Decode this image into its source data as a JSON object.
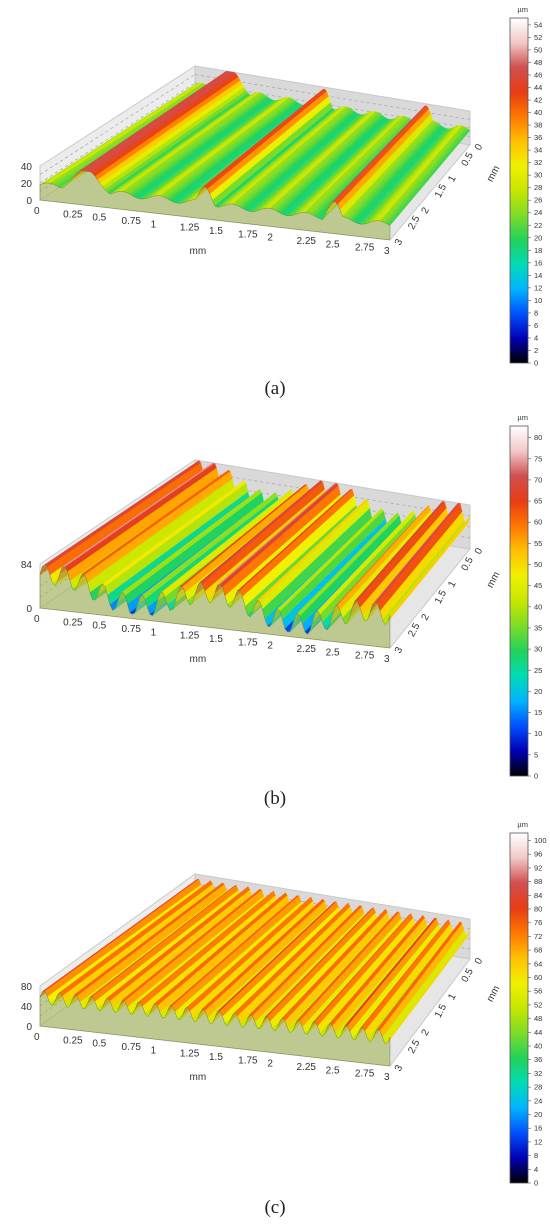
{
  "colors": {
    "scale": [
      "#000000",
      "#0000b4",
      "#0050ff",
      "#00b4ff",
      "#00dcb4",
      "#22d25a",
      "#7edc28",
      "#c8e600",
      "#f0f000",
      "#ffc000",
      "#ff7800",
      "#e83c14",
      "#d05050",
      "#f2c8c8",
      "#ffffff"
    ],
    "frame": "#c9c9c9",
    "tick_text": "#333333"
  },
  "panels": [
    {
      "caption": "(a)",
      "unit": "µm",
      "colorbar_ticks": [
        "54",
        "52",
        "50",
        "48",
        "46",
        "44",
        "42",
        "40",
        "38",
        "36",
        "34",
        "32",
        "30",
        "28",
        "26",
        "24",
        "22",
        "20",
        "18",
        "16",
        "14",
        "12",
        "10",
        "8",
        "6",
        "4",
        "2",
        "0"
      ],
      "z_ticks": [
        "40",
        "20",
        "0"
      ],
      "x_ticks": [
        "0",
        "0.25",
        "0.5",
        "0.75",
        "1",
        "1.25",
        "1.5",
        "1.75",
        "2",
        "2.25",
        "2.5",
        "2.75",
        "3"
      ],
      "x_label": "mm",
      "y_ticks": [
        "0",
        "0.5",
        "1",
        "1.5",
        "2",
        "2.5",
        "3"
      ],
      "y_label": "mm"
    },
    {
      "caption": "(b)",
      "unit": "µm",
      "colorbar_ticks": [
        "80",
        "75",
        "70",
        "65",
        "60",
        "55",
        "50",
        "45",
        "40",
        "35",
        "30",
        "25",
        "20",
        "15",
        "10",
        "5",
        "0"
      ],
      "z_ticks": [
        "84",
        "0"
      ],
      "x_ticks": [
        "0",
        "0.25",
        "0.5",
        "0.75",
        "1",
        "1.25",
        "1.5",
        "1.75",
        "2",
        "2.25",
        "2.5",
        "2.75",
        "3"
      ],
      "x_label": "mm",
      "y_ticks": [
        "0",
        "0.5",
        "1",
        "1.5",
        "2",
        "2.5",
        "3"
      ],
      "y_label": "mm"
    },
    {
      "caption": "(c)",
      "unit": "µm",
      "colorbar_ticks": [
        "100",
        "96",
        "92",
        "88",
        "84",
        "80",
        "76",
        "72",
        "68",
        "64",
        "60",
        "56",
        "52",
        "48",
        "44",
        "40",
        "36",
        "32",
        "28",
        "24",
        "20",
        "16",
        "12",
        "8",
        "4",
        "0"
      ],
      "z_ticks": [
        "80",
        "40",
        "0"
      ],
      "x_ticks": [
        "0",
        "0.25",
        "0.5",
        "0.75",
        "1",
        "1.25",
        "1.5",
        "1.75",
        "2",
        "2.25",
        "2.5",
        "2.75",
        "3"
      ],
      "x_label": "mm",
      "y_ticks": [
        "0",
        "0.5",
        "1",
        "1.5",
        "2",
        "2.5",
        "3"
      ],
      "y_label": "mm"
    }
  ]
}
